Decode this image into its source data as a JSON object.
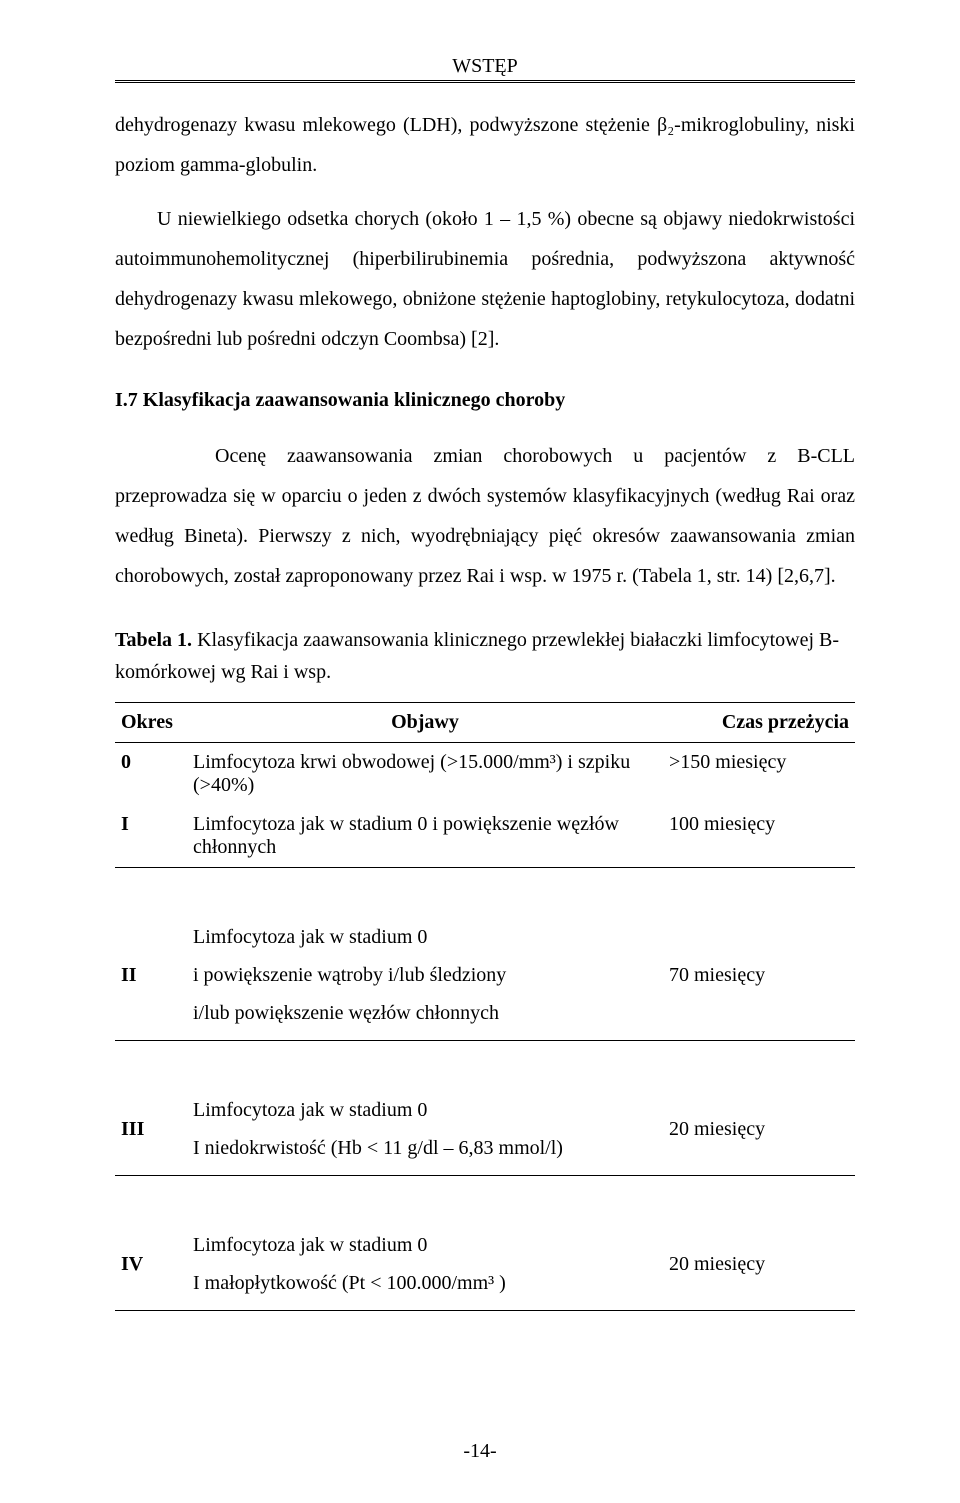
{
  "runningHead": "WSTĘP",
  "para1": "dehydrogenazy kwasu mlekowego (LDH), podwyższone stężenie β₂-mikroglobuliny, niski poziom gamma-globulin.",
  "para2": "U niewielkiego odsetka chorych (około 1 – 1,5 %) obecne są objawy niedokrwistości autoimmunohemolitycznej (hiperbilirubinemia pośrednia, podwyższona aktywność dehydrogenazy kwasu mlekowego, obniżone stężenie haptoglobiny, retykulocytoza, dodatni bezpośredni lub pośredni odczyn Coombsa) [2].",
  "sectionHeading": "I.7 Klasyfikacja zaawansowania klinicznego choroby",
  "para3": "Ocenę zaawansowania zmian chorobowych u pacjentów z B-CLL przeprowadza się w oparciu o jeden z dwóch systemów klasyfikacyjnych (według Rai oraz według Bineta). Pierwszy z nich, wyodrębniający pięć okresów zaawansowania zmian chorobowych, został zaproponowany przez Rai i wsp. w 1975 r. (Tabela 1, str. 14) [2,6,7].",
  "tableCaptionLead": "Tabela 1.",
  "tableCaptionRest": " Klasyfikacja zaawansowania klinicznego przewlekłej białaczki limfocytowej B-komórkowej wg Rai i wsp.",
  "headers": {
    "stage": "Okres",
    "objawy": "Objawy",
    "czas": "Czas przeżycia"
  },
  "rows": {
    "r0": {
      "stage": "0",
      "obj": "Limfocytoza krwi obwodowej (>15.000/mm³) i szpiku (>40%)",
      "czas": ">150 miesięcy"
    },
    "r1": {
      "stage": "I",
      "obj": "Limfocytoza jak w stadium 0 i powiększenie węzłów chłonnych",
      "czas": "100 miesięcy"
    },
    "r2": {
      "stage": "II",
      "obj1": "Limfocytoza jak w stadium 0",
      "obj2": "i powiększenie wątroby i/lub śledziony",
      "obj3": "i/lub powiększenie węzłów chłonnych",
      "czas": "70 miesięcy"
    },
    "r3": {
      "stage": "III",
      "obj1": "Limfocytoza jak w stadium 0",
      "obj2": "I niedokrwistość (Hb < 11 g/dl – 6,83 mmol/l)",
      "czas": "20 miesięcy"
    },
    "r4": {
      "stage": "IV",
      "obj1": "Limfocytoza jak w stadium 0",
      "obj2": "I małopłytkowość (Pt < 100.000/mm³ )",
      "czas": "20 miesięcy"
    }
  },
  "pageNumber": "-14-"
}
